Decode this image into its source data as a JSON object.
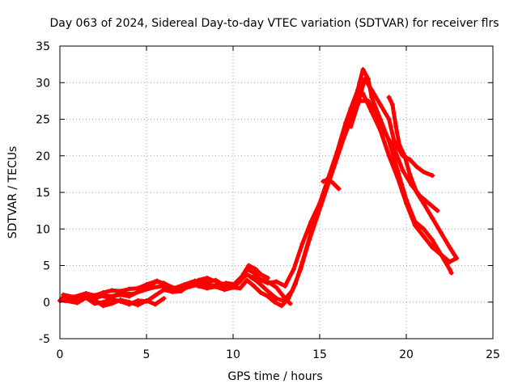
{
  "chart_data": {
    "type": "scatter",
    "title": "Day 063 of 2024, Sidereal Day-to-day VTEC variation (SDTVAR) for receiver flrs",
    "xlabel": "GPS time / hours",
    "ylabel": "SDTVAR / TECUs",
    "xlim": [
      0,
      25
    ],
    "ylim": [
      -5,
      35
    ],
    "xticks": [
      0,
      5,
      10,
      15,
      20,
      25
    ],
    "yticks": [
      -5,
      0,
      5,
      10,
      15,
      20,
      25,
      30,
      35
    ],
    "xtick_labels": [
      "0",
      "5",
      "10",
      "15",
      "20",
      "25"
    ],
    "ytick_labels": [
      "-5",
      "0",
      "5",
      "10",
      "15",
      "20",
      "25",
      "30",
      "35"
    ],
    "grid": true,
    "marker": "+",
    "series": [
      {
        "color": "#ff0000",
        "tracks": [
          [
            [
              0.0,
              0.2
            ],
            [
              0.5,
              0.5
            ],
            [
              1.0,
              0.4
            ],
            [
              1.5,
              0.7
            ],
            [
              2.0,
              0.5
            ],
            [
              2.5,
              0.9
            ],
            [
              3.0,
              0.8
            ],
            [
              3.5,
              1.0
            ],
            [
              4.0,
              0.8
            ],
            [
              4.5,
              1.4
            ],
            [
              5.0,
              1.8
            ],
            [
              5.3,
              2.3
            ],
            [
              5.6,
              2.9
            ],
            [
              6.0,
              2.5
            ],
            [
              6.5,
              1.7
            ],
            [
              7.0,
              1.6
            ],
            [
              7.5,
              2.2
            ],
            [
              8.0,
              3.0
            ],
            [
              8.5,
              3.3
            ],
            [
              9.0,
              2.8
            ],
            [
              9.5,
              2.4
            ],
            [
              10.0,
              2.3
            ],
            [
              10.5,
              3.5
            ],
            [
              10.9,
              5.0
            ],
            [
              11.3,
              4.5
            ],
            [
              11.6,
              3.8
            ],
            [
              12.0,
              3.3
            ]
          ],
          [
            [
              0.2,
              1.0
            ],
            [
              0.8,
              0.7
            ],
            [
              1.5,
              1.2
            ],
            [
              2.0,
              0.9
            ],
            [
              2.5,
              1.3
            ],
            [
              3.0,
              1.6
            ],
            [
              3.5,
              1.5
            ],
            [
              4.0,
              1.8
            ],
            [
              4.5,
              1.9
            ],
            [
              5.0,
              2.4
            ],
            [
              5.5,
              2.8
            ],
            [
              6.0,
              2.6
            ],
            [
              6.5,
              2.0
            ],
            [
              7.0,
              1.8
            ],
            [
              7.5,
              2.1
            ],
            [
              8.0,
              2.4
            ],
            [
              8.5,
              2.8
            ],
            [
              9.0,
              3.0
            ],
            [
              9.5,
              2.2
            ],
            [
              10.0,
              2.0
            ],
            [
              10.4,
              2.8
            ],
            [
              10.8,
              4.5
            ],
            [
              11.2,
              4.0
            ],
            [
              11.6,
              3.0
            ],
            [
              12.0,
              2.6
            ],
            [
              12.5,
              2.8
            ],
            [
              13.0,
              2.2
            ],
            [
              13.5,
              4.5
            ],
            [
              14.0,
              8.0
            ],
            [
              14.5,
              11.0
            ],
            [
              15.0,
              13.5
            ],
            [
              15.5,
              17.0
            ],
            [
              16.0,
              20.5
            ],
            [
              16.5,
              24.5
            ],
            [
              16.8,
              26.5
            ],
            [
              17.2,
              29.0
            ],
            [
              17.5,
              28.5
            ],
            [
              18.0,
              26.0
            ],
            [
              18.5,
              23.5
            ],
            [
              19.0,
              20.0
            ],
            [
              19.5,
              17.0
            ],
            [
              20.0,
              13.5
            ],
            [
              20.5,
              10.5
            ],
            [
              21.0,
              9.0
            ],
            [
              21.5,
              7.5
            ],
            [
              22.0,
              6.5
            ],
            [
              22.5,
              5.5
            ],
            [
              22.9,
              6.0
            ]
          ],
          [
            [
              0.3,
              0.2
            ],
            [
              1.0,
              -0.1
            ],
            [
              1.5,
              0.6
            ],
            [
              2.0,
              -0.2
            ],
            [
              2.5,
              0.0
            ],
            [
              3.0,
              0.4
            ],
            [
              3.5,
              0.1
            ],
            [
              4.0,
              -0.3
            ],
            [
              4.5,
              0.2
            ],
            [
              5.0,
              0.1
            ],
            [
              5.5,
              0.9
            ],
            [
              6.0,
              1.7
            ],
            [
              6.5,
              1.4
            ],
            [
              7.0,
              1.5
            ],
            [
              7.5,
              2.5
            ],
            [
              8.0,
              2.2
            ],
            [
              8.5,
              1.9
            ],
            [
              9.0,
              2.1
            ],
            [
              9.5,
              1.7
            ],
            [
              10.0,
              2.0
            ],
            [
              10.4,
              1.9
            ],
            [
              10.8,
              3.0
            ],
            [
              11.2,
              2.2
            ],
            [
              11.6,
              1.3
            ],
            [
              12.0,
              0.8
            ],
            [
              12.4,
              0.0
            ],
            [
              12.8,
              -0.5
            ],
            [
              13.2,
              0.5
            ],
            [
              13.6,
              2.5
            ],
            [
              14.0,
              5.5
            ],
            [
              14.5,
              9.5
            ],
            [
              15.0,
              13.0
            ],
            [
              15.5,
              16.5
            ],
            [
              16.0,
              20.0
            ],
            [
              16.5,
              24.0
            ],
            [
              17.0,
              27.0
            ],
            [
              17.3,
              30.0
            ],
            [
              17.5,
              31.8
            ],
            [
              17.8,
              30.5
            ],
            [
              18.0,
              28.0
            ],
            [
              18.5,
              25.0
            ],
            [
              19.0,
              22.0
            ],
            [
              19.5,
              18.0
            ],
            [
              20.0,
              14.0
            ],
            [
              20.5,
              11.0
            ],
            [
              21.0,
              10.0
            ],
            [
              21.5,
              8.5
            ],
            [
              22.0,
              6.5
            ],
            [
              22.5,
              4.5
            ],
            [
              22.6,
              4.0
            ]
          ],
          [
            [
              0.1,
              0.5
            ],
            [
              0.8,
              0.3
            ],
            [
              1.5,
              0.9
            ],
            [
              2.2,
              1.0
            ],
            [
              2.8,
              0.6
            ],
            [
              3.5,
              1.2
            ],
            [
              4.2,
              1.1
            ],
            [
              4.8,
              1.6
            ],
            [
              5.4,
              2.0
            ],
            [
              6.0,
              2.2
            ],
            [
              6.6,
              1.9
            ],
            [
              7.2,
              2.4
            ],
            [
              7.8,
              2.9
            ],
            [
              8.4,
              2.5
            ],
            [
              9.0,
              2.2
            ],
            [
              9.6,
              2.6
            ],
            [
              10.2,
              2.4
            ],
            [
              10.8,
              3.8
            ],
            [
              11.4,
              2.8
            ],
            [
              12.0,
              1.5
            ],
            [
              12.5,
              0.5
            ],
            [
              12.9,
              0.2
            ],
            [
              13.4,
              1.5
            ],
            [
              13.9,
              4.5
            ],
            [
              14.4,
              8.5
            ],
            [
              14.9,
              12.0
            ],
            [
              15.4,
              15.5
            ],
            [
              15.9,
              19.0
            ],
            [
              16.4,
              22.5
            ],
            [
              16.9,
              25.5
            ],
            [
              17.3,
              27.5
            ],
            [
              17.8,
              27.5
            ],
            [
              18.3,
              25.5
            ],
            [
              18.8,
              23.0
            ],
            [
              19.3,
              21.0
            ],
            [
              19.8,
              18.0
            ],
            [
              20.3,
              16.0
            ],
            [
              20.8,
              14.5
            ],
            [
              21.3,
              13.5
            ],
            [
              21.8,
              12.5
            ]
          ],
          [
            [
              16.8,
              24.0
            ],
            [
              17.2,
              27.0
            ],
            [
              17.6,
              30.5
            ],
            [
              18.0,
              29.0
            ],
            [
              18.5,
              27.0
            ],
            [
              19.0,
              25.0
            ],
            [
              19.3,
              22.0
            ],
            [
              19.8,
              20.0
            ],
            [
              20.2,
              19.5
            ],
            [
              20.6,
              18.5
            ],
            [
              21.0,
              17.8
            ],
            [
              21.5,
              17.3
            ]
          ],
          [
            [
              19.0,
              28.0
            ],
            [
              19.2,
              27.0
            ],
            [
              19.4,
              24.0
            ],
            [
              19.6,
              21.5
            ],
            [
              19.9,
              20.0
            ],
            [
              20.2,
              17.5
            ],
            [
              20.6,
              15.0
            ],
            [
              21.0,
              13.5
            ],
            [
              21.5,
              11.5
            ],
            [
              22.0,
              9.5
            ],
            [
              22.5,
              7.5
            ],
            [
              22.9,
              6.0
            ]
          ],
          [
            [
              2.0,
              0.3
            ],
            [
              2.5,
              -0.5
            ],
            [
              3.0,
              -0.2
            ],
            [
              3.5,
              0.3
            ],
            [
              4.0,
              0.0
            ],
            [
              4.5,
              -0.4
            ],
            [
              5.0,
              0.2
            ],
            [
              5.5,
              -0.3
            ],
            [
              6.0,
              0.5
            ]
          ],
          [
            [
              11.0,
              3.5
            ],
            [
              11.5,
              3.2
            ],
            [
              12.0,
              2.8
            ],
            [
              12.5,
              2.0
            ],
            [
              13.0,
              0.5
            ],
            [
              13.3,
              -0.2
            ]
          ],
          [
            [
              15.2,
              16.5
            ],
            [
              15.5,
              16.8
            ],
            [
              15.8,
              16.2
            ],
            [
              16.1,
              15.5
            ]
          ]
        ]
      }
    ]
  }
}
